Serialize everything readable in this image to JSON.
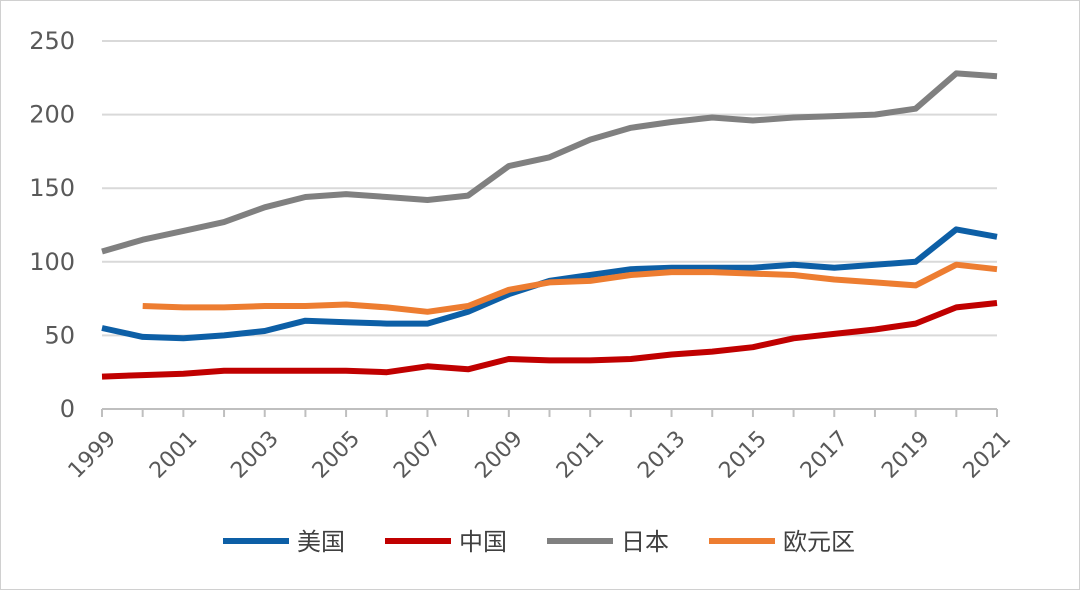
{
  "chart_data": {
    "type": "line",
    "title": "",
    "xlabel": "",
    "ylabel": "",
    "ylim": [
      0,
      250
    ],
    "yticks": [
      "0",
      "50",
      "100",
      "150",
      "200",
      "250"
    ],
    "xlim": [
      1999,
      2021
    ],
    "x_tick_labels": [
      "1999",
      "2001",
      "2003",
      "2005",
      "2007",
      "2009",
      "2011",
      "2013",
      "2015",
      "2017",
      "2019",
      "2021"
    ],
    "x": [
      1999,
      2000,
      2001,
      2002,
      2003,
      2004,
      2005,
      2006,
      2007,
      2008,
      2009,
      2010,
      2011,
      2012,
      2013,
      2014,
      2015,
      2016,
      2017,
      2018,
      2019,
      2020,
      2021
    ],
    "grid": "horizontal",
    "legend_position": "bottom",
    "series": [
      {
        "name": "美国",
        "color": "#0d5fa6",
        "values": [
          55,
          49,
          48,
          50,
          53,
          60,
          59,
          58,
          58,
          66,
          78,
          87,
          91,
          95,
          96,
          96,
          96,
          98,
          96,
          98,
          100,
          122,
          117
        ]
      },
      {
        "name": "中国",
        "color": "#c00000",
        "values": [
          22,
          23,
          24,
          26,
          26,
          26,
          26,
          25,
          29,
          27,
          34,
          33,
          33,
          34,
          37,
          39,
          42,
          48,
          51,
          54,
          58,
          69,
          72
        ]
      },
      {
        "name": "日本",
        "color": "#808080",
        "values": [
          107,
          115,
          121,
          127,
          137,
          144,
          146,
          144,
          142,
          145,
          165,
          171,
          183,
          191,
          195,
          198,
          196,
          198,
          199,
          200,
          204,
          228,
          226
        ]
      },
      {
        "name": "欧元区",
        "color": "#ed7d31",
        "values": [
          null,
          70,
          69,
          69,
          70,
          70,
          71,
          69,
          66,
          70,
          81,
          86,
          87,
          91,
          93,
          93,
          92,
          91,
          88,
          86,
          84,
          98,
          95
        ]
      }
    ]
  }
}
